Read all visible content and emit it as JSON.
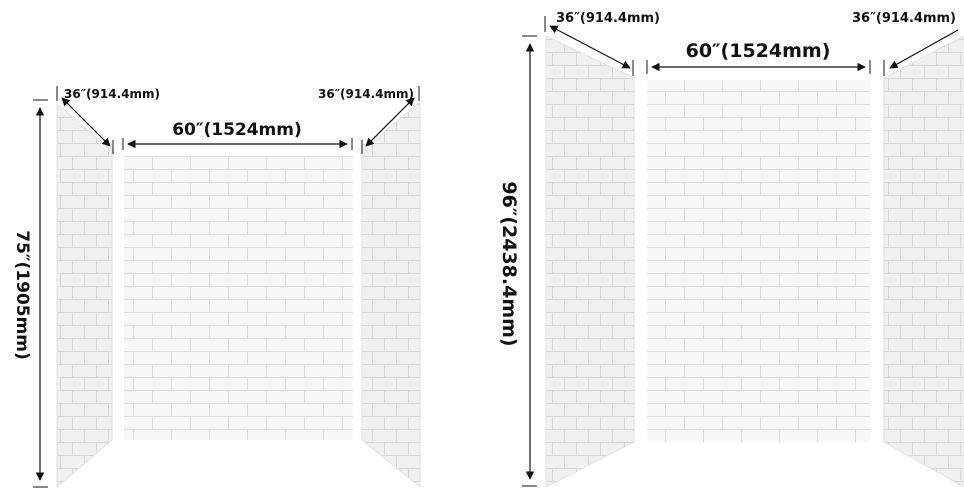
{
  "panel_kits": [
    {
      "height_label": "75″(1905mm)",
      "back_width_label": "60″(1524mm)",
      "left_side_label": "36″(914.4mm)",
      "right_side_label": "36″(914.4mm)"
    },
    {
      "height_label": "96″(2438.4mm)",
      "back_width_label": "60″(1524mm)",
      "left_side_label": "36″(914.4mm)",
      "right_side_label": "36″(914.4mm)"
    }
  ],
  "colors": {
    "tile": "#f6f6f6",
    "grout": "#dcdcdc",
    "side_shade": "#eeeeee",
    "dimension_line": "#111111"
  }
}
